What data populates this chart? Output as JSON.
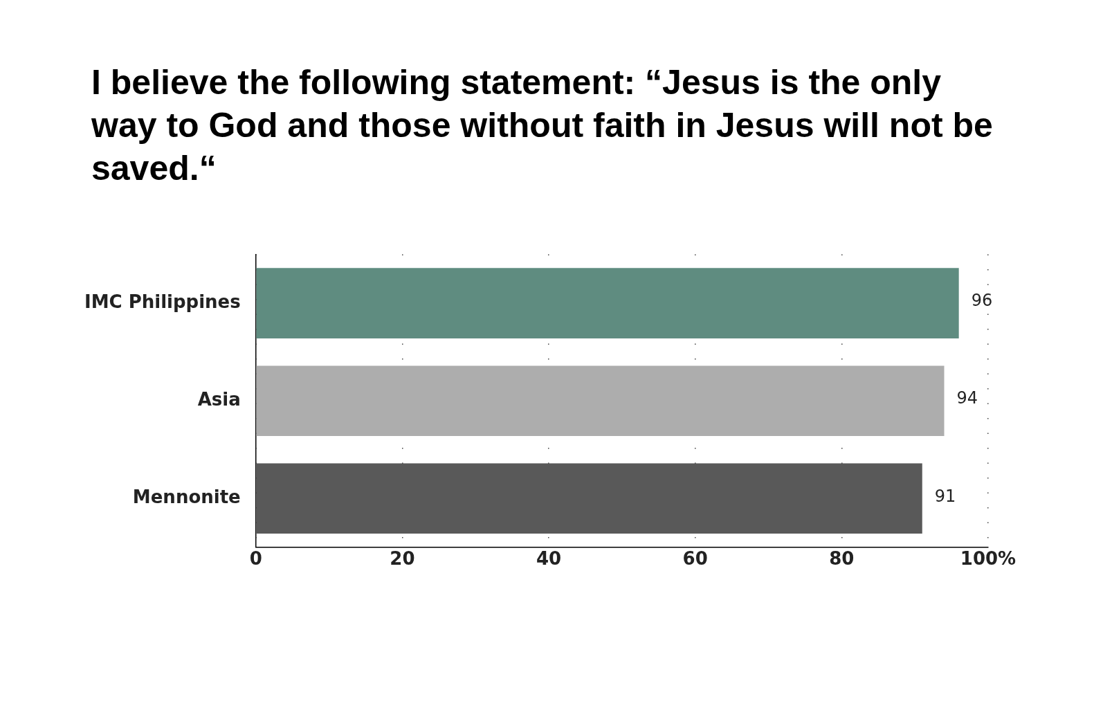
{
  "chart_data": {
    "type": "bar",
    "orientation": "horizontal",
    "title": "I believe the following statement: “Jesus is the only way to God and those without faith in Jesus will not be saved.“",
    "categories": [
      "IMC Philippines",
      "Asia",
      "Mennonite"
    ],
    "values": [
      96,
      94,
      91
    ],
    "colors": [
      "#5f8c80",
      "#adadad",
      "#595959"
    ],
    "xlim": [
      0,
      100
    ],
    "xticks": [
      0,
      20,
      40,
      60,
      80,
      {
        "value": 100,
        "label": "100%"
      }
    ],
    "grid": "x",
    "legend": false,
    "data_labels": true
  }
}
